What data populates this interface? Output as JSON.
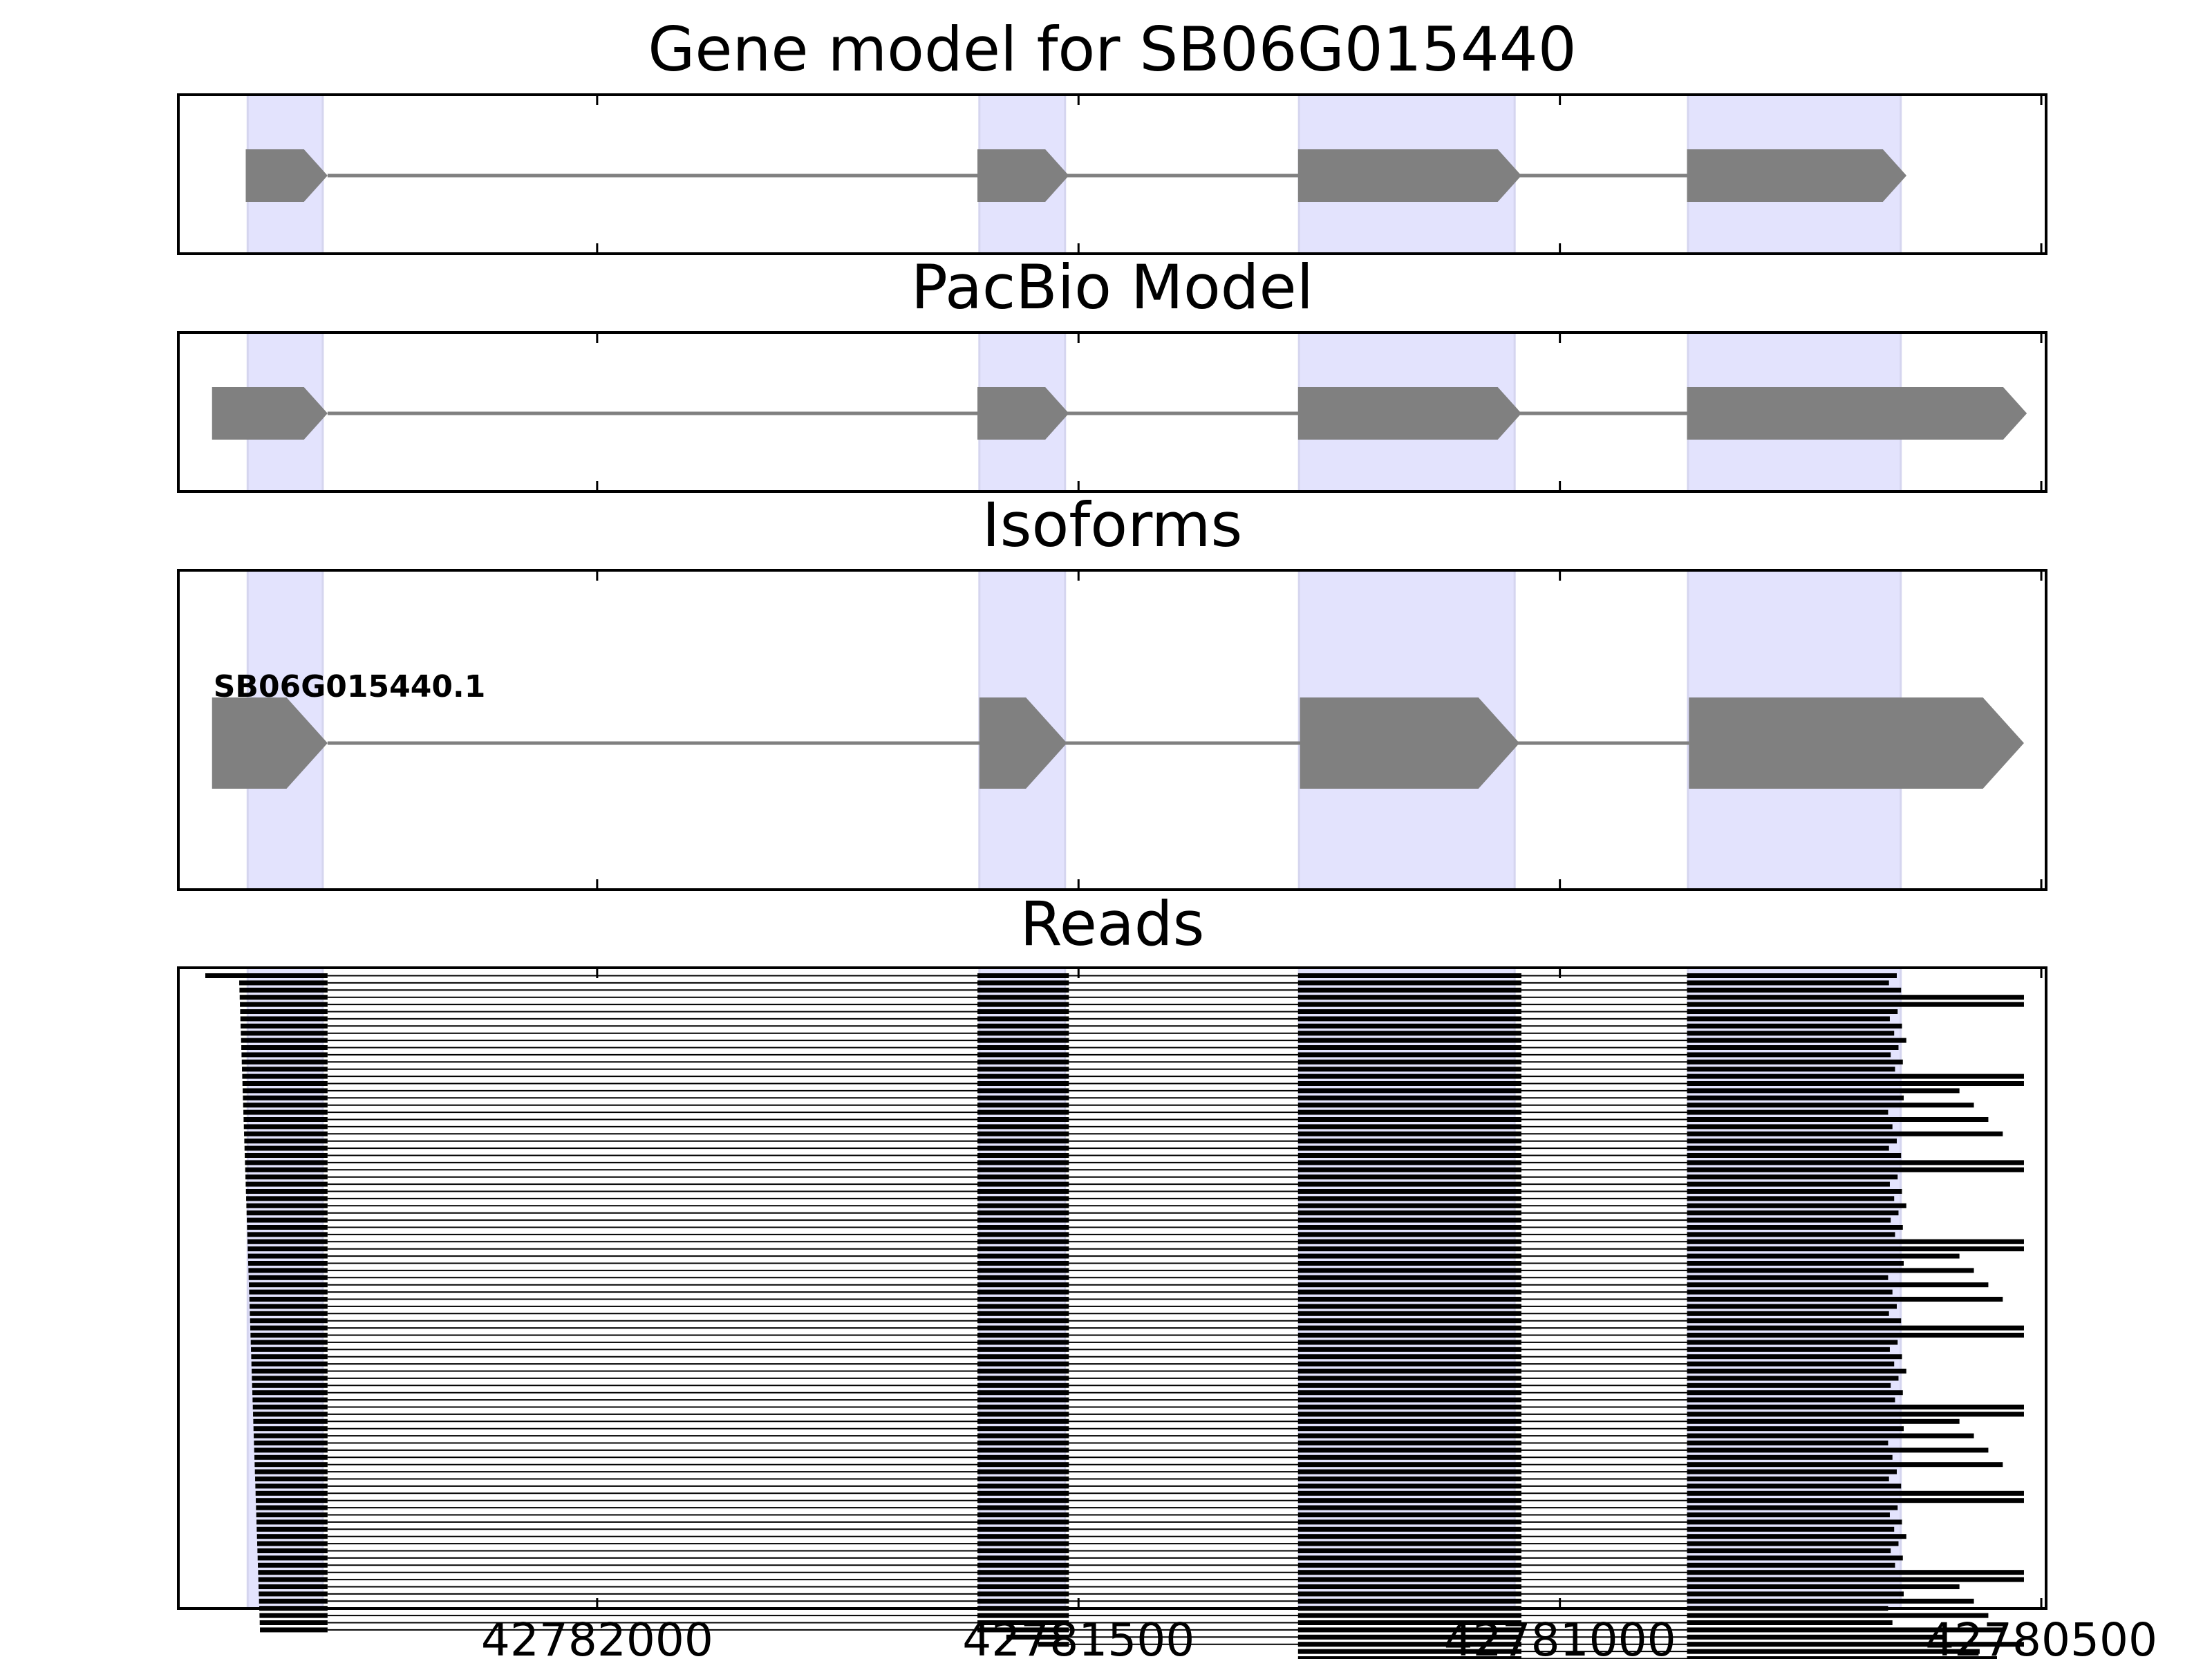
{
  "chart_data": {
    "type": "gene-track",
    "x_axis": {
      "reversed": true,
      "range": [
        42782435,
        42780495
      ],
      "ticks": [
        42782000,
        42781500,
        42781000,
        42780500
      ],
      "tick_labels": [
        "42782000",
        "42781500",
        "42781000",
        "42780500"
      ]
    },
    "highlight_regions": [
      [
        42782363,
        42782285
      ],
      [
        42781603,
        42781514
      ],
      [
        42781271,
        42781047
      ],
      [
        42780867,
        42780646
      ]
    ],
    "panels": [
      {
        "id": "gene-model",
        "title": "Gene model for SB06G015440",
        "exons": [
          [
            42782365,
            42782280
          ],
          [
            42781605,
            42781510
          ],
          [
            42781272,
            42781040
          ],
          [
            42780868,
            42780640
          ]
        ]
      },
      {
        "id": "pacbio-model",
        "title": "PacBio Model",
        "exons": [
          [
            42782400,
            42782280
          ],
          [
            42781605,
            42781510
          ],
          [
            42781272,
            42781040
          ],
          [
            42780868,
            42780515
          ]
        ]
      },
      {
        "id": "isoforms",
        "title": "Isoforms",
        "isoform_label": "SB06G015440.1",
        "exons": [
          [
            42782400,
            42782280
          ],
          [
            42781603,
            42781512
          ],
          [
            42781270,
            42781042
          ],
          [
            42780866,
            42780518
          ]
        ]
      },
      {
        "id": "reads",
        "title": "Reads",
        "read_count": 100,
        "read_start_first": 42782407,
        "read_start_range": [
          42782372,
          42782350
        ],
        "read_end_range": [
          42780660,
          42780518
        ],
        "truncated_start_reads": [
          42781575,
          42781542,
          42781503,
          42781469,
          42781436,
          42781403,
          42781369,
          42781328
        ]
      }
    ]
  }
}
